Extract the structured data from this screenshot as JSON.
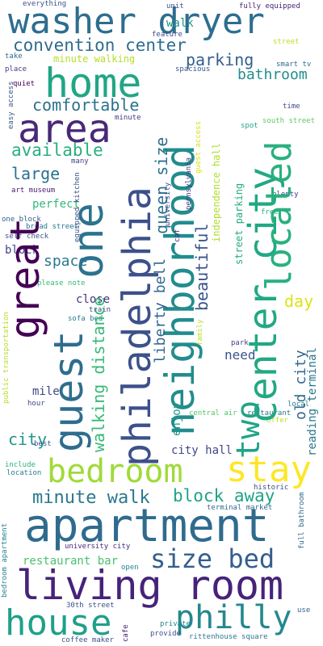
{
  "words": [
    {
      "text": "washer dryer",
      "color": "#2d6e8e"
    },
    {
      "text": "home",
      "color": "#21a685"
    },
    {
      "text": "area",
      "color": "#482878"
    },
    {
      "text": "convention center",
      "color": "#2f6c8e"
    },
    {
      "text": "parking",
      "color": "#355f8d"
    },
    {
      "text": "bathroom",
      "color": "#218f8d"
    },
    {
      "text": "comfortable",
      "color": "#2c718e"
    },
    {
      "text": "available",
      "color": "#29af7f"
    },
    {
      "text": "large",
      "color": "#2d708e"
    },
    {
      "text": "walk",
      "color": "#21908c"
    },
    {
      "text": "minute walking",
      "color": "#b5de2b"
    },
    {
      "text": "everything",
      "color": "#3b528b"
    },
    {
      "text": "unit",
      "color": "#3b528b"
    },
    {
      "text": "fully equipped",
      "color": "#482475"
    },
    {
      "text": "feature",
      "color": "#3e4a89"
    },
    {
      "text": "street",
      "color": "#bddf26"
    },
    {
      "text": "take",
      "color": "#31688e"
    },
    {
      "text": "place",
      "color": "#443983"
    },
    {
      "text": "quiet",
      "color": "#440154"
    },
    {
      "text": "spacious",
      "color": "#38598c"
    },
    {
      "text": "smart tv",
      "color": "#306a8e"
    },
    {
      "text": "minute",
      "color": "#443b84"
    },
    {
      "text": "time",
      "color": "#3e4989"
    },
    {
      "text": "spot",
      "color": "#21a585"
    },
    {
      "text": "south street",
      "color": "#5ec962"
    },
    {
      "text": "many",
      "color": "#414487"
    },
    {
      "text": "art museum",
      "color": "#481b6d"
    },
    {
      "text": "perfect",
      "color": "#35b779"
    },
    {
      "text": "plenty",
      "color": "#3f4788"
    },
    {
      "text": "one block",
      "color": "#34608d"
    },
    {
      "text": "broad street",
      "color": "#2a768e"
    },
    {
      "text": "free",
      "color": "#28ae80"
    },
    {
      "text": "self check",
      "color": "#3b518b"
    },
    {
      "text": "block",
      "color": "#3e4989"
    },
    {
      "text": "space",
      "color": "#2a788e"
    },
    {
      "text": "please note",
      "color": "#38b977"
    },
    {
      "text": "close",
      "color": "#46327e"
    },
    {
      "text": "train",
      "color": "#414487"
    },
    {
      "text": "sofa bed",
      "color": "#287d8e"
    },
    {
      "text": "day",
      "color": "#dde318"
    },
    {
      "text": "mile",
      "color": "#3e4a89"
    },
    {
      "text": "park",
      "color": "#424086"
    },
    {
      "text": "need",
      "color": "#3a548c"
    },
    {
      "text": "city",
      "color": "#1f988b"
    },
    {
      "text": "city hall",
      "color": "#3f4889"
    },
    {
      "text": "hour",
      "color": "#3e4a89"
    },
    {
      "text": "local",
      "color": "#25848e"
    },
    {
      "text": "restaurant",
      "color": "#29798e"
    },
    {
      "text": "offer",
      "color": "#bddf26"
    },
    {
      "text": "central air",
      "color": "#52c569"
    },
    {
      "text": "best",
      "color": "#3b528b"
    },
    {
      "text": "include",
      "color": "#2db27d"
    },
    {
      "text": "location",
      "color": "#287c8e"
    },
    {
      "text": "bedroom",
      "color": "#a0da39"
    },
    {
      "text": "stay",
      "color": "#fde725"
    },
    {
      "text": "minute walk",
      "color": "#2a788e"
    },
    {
      "text": "block away",
      "color": "#20a386"
    },
    {
      "text": "apartment",
      "color": "#2f6b8e"
    },
    {
      "text": "historic",
      "color": "#3d4d8a"
    },
    {
      "text": "terminal market",
      "color": "#31688e"
    },
    {
      "text": "size bed",
      "color": "#355e8d"
    },
    {
      "text": "restaurant bar",
      "color": "#4ac16d"
    },
    {
      "text": "university city",
      "color": "#482878"
    },
    {
      "text": "open",
      "color": "#26828e"
    },
    {
      "text": "living room",
      "color": "#46237a"
    },
    {
      "text": "house",
      "color": "#1fa088"
    },
    {
      "text": "philly",
      "color": "#23888e"
    },
    {
      "text": "30th street",
      "color": "#3a538b"
    },
    {
      "text": "use",
      "color": "#33638d"
    },
    {
      "text": "private",
      "color": "#25858e"
    },
    {
      "text": "provide",
      "color": "#3b528b"
    },
    {
      "text": "coffee maker",
      "color": "#3b528b"
    },
    {
      "text": "rittenhouse square",
      "color": "#2a788e"
    },
    {
      "text": "one",
      "color": "#2c728e"
    },
    {
      "text": "great",
      "color": "#440154"
    },
    {
      "text": "guest",
      "color": "#2e6d8e"
    },
    {
      "text": "philadelphia",
      "color": "#3c508b"
    },
    {
      "text": "neighborhood",
      "color": "#228c8d"
    },
    {
      "text": "center city",
      "color": "#22a884"
    },
    {
      "text": "located",
      "color": "#2ab07f"
    },
    {
      "text": "two",
      "color": "#20a486"
    },
    {
      "text": "queen size",
      "color": "#2d718e"
    },
    {
      "text": "beautiful",
      "color": "#39558c"
    },
    {
      "text": "walking distance",
      "color": "#38b977"
    },
    {
      "text": "liberty bell",
      "color": "#31678e"
    },
    {
      "text": "enjoy",
      "color": "#1f9a8a"
    },
    {
      "text": "independence hall",
      "color": "#b2dd2d"
    },
    {
      "text": "university",
      "color": "#3e4a89"
    },
    {
      "text": "pennsylvania",
      "color": "#443a83"
    },
    {
      "text": "guest access",
      "color": "#d8e219"
    },
    {
      "text": "caf",
      "color": "#472d7b"
    },
    {
      "text": "street parking",
      "color": "#25ac82"
    },
    {
      "text": "old city",
      "color": "#31688e"
    },
    {
      "text": "reading terminal",
      "color": "#2a768e"
    },
    {
      "text": "public transportation",
      "color": "#b5de2b"
    },
    {
      "text": "family",
      "color": "#bddf26"
    },
    {
      "text": "full bathroom",
      "color": "#31688e"
    },
    {
      "text": "bedroom apartment",
      "color": "#26828e"
    },
    {
      "text": "easy access",
      "color": "#39568c"
    },
    {
      "text": "equipped kitchen",
      "color": "#3b528b"
    },
    {
      "text": "cafe",
      "color": "#482475"
    }
  ]
}
